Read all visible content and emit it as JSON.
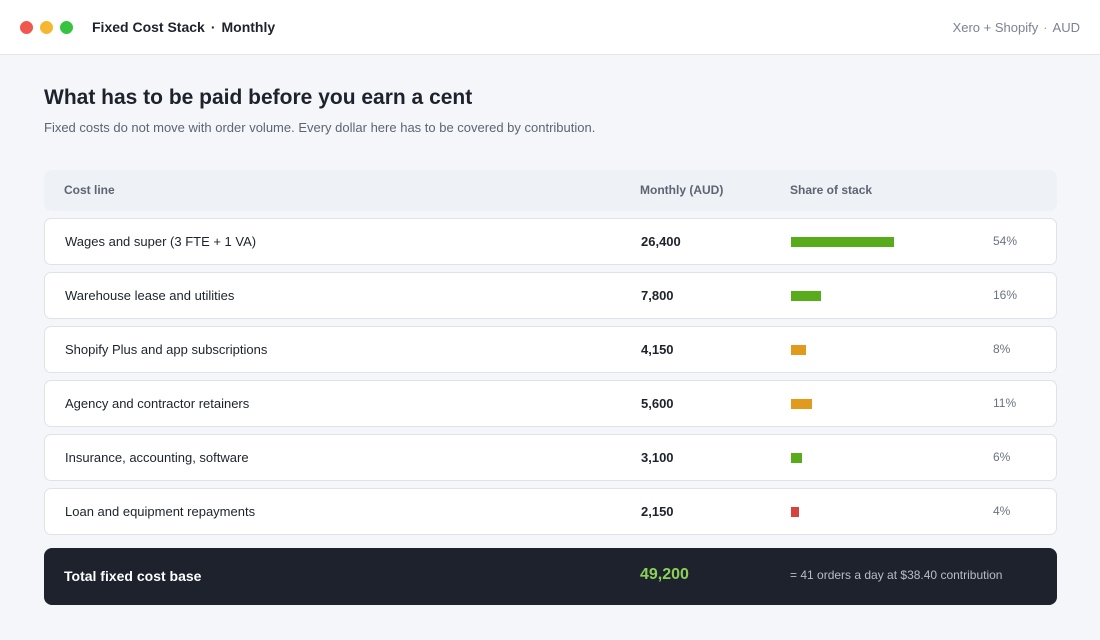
{
  "window": {
    "controls": [
      {
        "name": "close",
        "color": "#f0584f"
      },
      {
        "name": "minimize",
        "color": "#f4b730"
      },
      {
        "name": "maximize",
        "color": "#36c33f"
      }
    ]
  },
  "header": {
    "title": "Fixed Cost Stack",
    "separator": "·",
    "period": "Monthly",
    "source": "Xero + Shopify",
    "source_separator": "·",
    "currency": "AUD"
  },
  "page": {
    "heading": "What has to be paid before you earn a cent",
    "subheading": "Fixed costs do not move with order volume. Every dollar here has to be covered by contribution."
  },
  "table": {
    "columns": {
      "name": "Cost line",
      "amount": "Monthly (AUD)",
      "share": "Share of stack"
    },
    "rows": [
      {
        "name": "Wages and super (3 FTE + 1 VA)",
        "amount": "26,400",
        "share": 54,
        "share_label": "54%",
        "color": "#58ab1b"
      },
      {
        "name": "Warehouse lease and utilities",
        "amount": "7,800",
        "share": 16,
        "share_label": "16%",
        "color": "#58ab1b"
      },
      {
        "name": "Shopify Plus and app subscriptions",
        "amount": "4,150",
        "share": 8,
        "share_label": "8%",
        "color": "#e29a1d"
      },
      {
        "name": "Agency and contractor retainers",
        "amount": "5,600",
        "share": 11,
        "share_label": "11%",
        "color": "#e29a1d"
      },
      {
        "name": "Insurance, accounting, software",
        "amount": "3,100",
        "share": 6,
        "share_label": "6%",
        "color": "#58ab1b"
      },
      {
        "name": "Loan and equipment repayments",
        "amount": "2,150",
        "share": 4,
        "share_label": "4%",
        "color": "#d9423a"
      }
    ]
  },
  "total": {
    "label": "Total fixed cost base",
    "amount": "49,200",
    "note": "= 41 orders a day at $38.40 contribution"
  }
}
